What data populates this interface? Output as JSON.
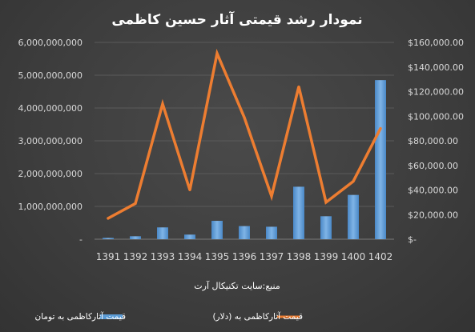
{
  "chart_data": {
    "type": "bar",
    "title": "نمودار رشد قیمتی آثار حسین کاظمی",
    "note": "منبع:سایت تکنیکال آرت",
    "categories": [
      "1391",
      "1392",
      "1393",
      "1394",
      "1395",
      "1396",
      "1397",
      "1398",
      "1399",
      "1400",
      "1402"
    ],
    "y_left": {
      "min": 0,
      "max": 6000000000,
      "ticks": [
        {
          "value": 0,
          "label": "-"
        },
        {
          "value": 1000000000,
          "label": "1,000,000,000"
        },
        {
          "value": 2000000000,
          "label": "2,000,000,000"
        },
        {
          "value": 3000000000,
          "label": "3,000,000,000"
        },
        {
          "value": 4000000000,
          "label": "4,000,000,000"
        },
        {
          "value": 5000000000,
          "label": "5,000,000,000"
        },
        {
          "value": 6000000000,
          "label": "6,000,000,000"
        }
      ]
    },
    "y_right": {
      "min": 0,
      "max": 160000,
      "ticks": [
        {
          "value": 0,
          "label": "$-"
        },
        {
          "value": 20000,
          "label": "$20,000.00"
        },
        {
          "value": 40000,
          "label": "$40,000.00"
        },
        {
          "value": 60000,
          "label": "$60,000.00"
        },
        {
          "value": 80000,
          "label": "$80,000.00"
        },
        {
          "value": 100000,
          "label": "$100,000.00"
        },
        {
          "value": 120000,
          "label": "$120,000.00"
        },
        {
          "value": 140000,
          "label": "$140,000.00"
        },
        {
          "value": 160000,
          "label": "$160,000.00"
        }
      ]
    },
    "grid": true,
    "legend_position": "bottom",
    "series": [
      {
        "name": "قیمت آثارکاظمی  به تومان",
        "kind": "bar",
        "axis": "left",
        "color": "#5b9bd5",
        "values": [
          40000000,
          90000000,
          360000000,
          140000000,
          560000000,
          400000000,
          380000000,
          1600000000,
          700000000,
          1350000000,
          4850000000
        ]
      },
      {
        "name": "قیمت آثارکاظمی  به (دلار)",
        "kind": "line",
        "axis": "right",
        "color": "#ed7d31",
        "values": [
          17000,
          29000,
          110000,
          40000,
          151000,
          99000,
          35000,
          124000,
          30000,
          47000,
          90000
        ]
      }
    ]
  }
}
